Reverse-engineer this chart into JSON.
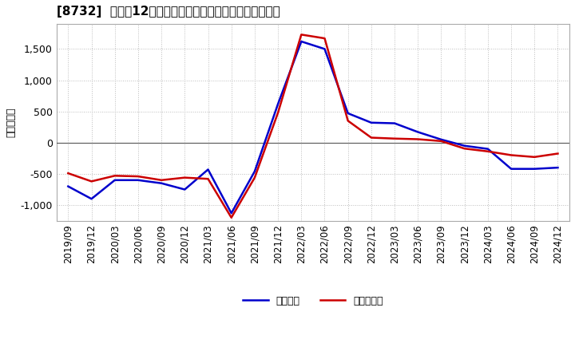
{
  "title": "[8732]  利益の12か月移動合計の対前年同期増減額の推移",
  "ylabel": "（百万円）",
  "x_labels": [
    "2019/09",
    "2019/12",
    "2020/03",
    "2020/06",
    "2020/09",
    "2020/12",
    "2021/03",
    "2021/06",
    "2021/09",
    "2021/12",
    "2022/03",
    "2022/06",
    "2022/09",
    "2022/12",
    "2023/03",
    "2023/06",
    "2023/09",
    "2023/12",
    "2024/03",
    "2024/06",
    "2024/09",
    "2024/12"
  ],
  "keijo_rieki": [
    -700,
    -900,
    -600,
    -600,
    -650,
    -750,
    -430,
    -1130,
    -460,
    620,
    1620,
    1500,
    470,
    320,
    310,
    170,
    50,
    -50,
    -100,
    -420,
    -420,
    -400
  ],
  "touki_jun_rieki": [
    -490,
    -620,
    -530,
    -540,
    -600,
    -560,
    -580,
    -1200,
    -560,
    480,
    1730,
    1670,
    350,
    80,
    65,
    55,
    25,
    -95,
    -140,
    -200,
    -230,
    -175
  ],
  "line_color_keijo": "#0000cc",
  "line_color_touki": "#cc0000",
  "background_color": "#ffffff",
  "grid_color": "#bbbbbb",
  "ylim": [
    -1250,
    1900
  ],
  "yticks": [
    -1000,
    -500,
    0,
    500,
    1000,
    1500
  ],
  "legend_keijo": "経常利益",
  "legend_touki": "当期純利益"
}
